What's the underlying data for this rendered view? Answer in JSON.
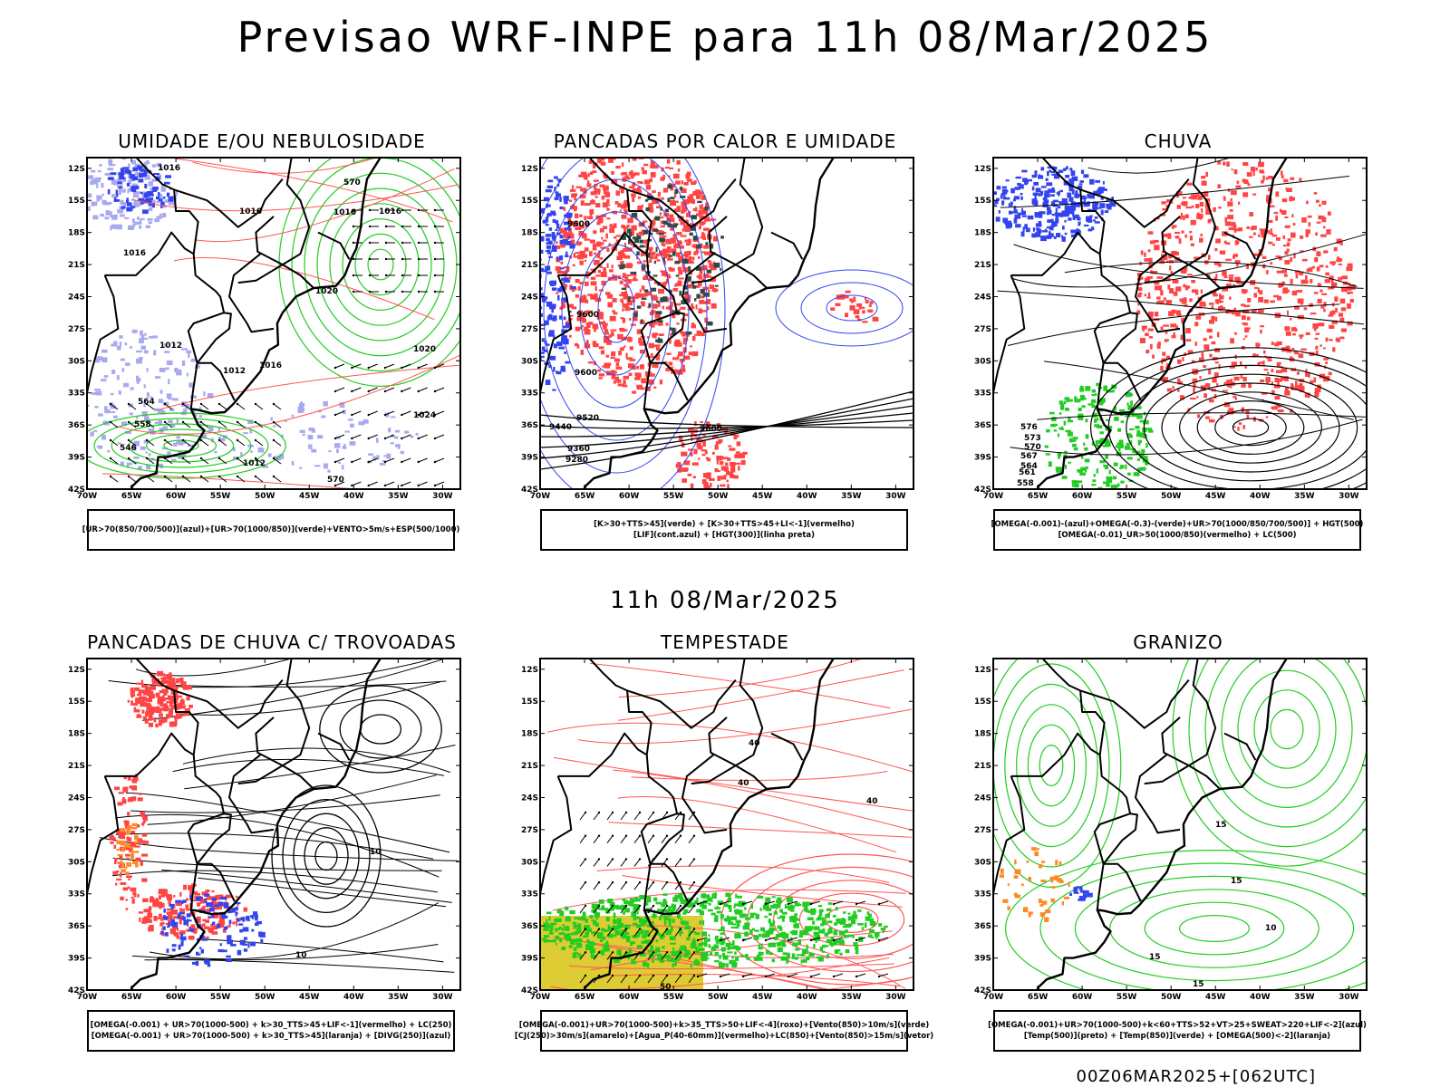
{
  "page": {
    "title": "Previsao WRF-INPE  para 11h 08/Mar/2025",
    "mid_title": "11h 08/Mar/2025",
    "footer": "00Z06MAR2025+[062UTC]"
  },
  "axes": {
    "lat_labels": [
      "12S",
      "15S",
      "18S",
      "21S",
      "24S",
      "27S",
      "30S",
      "33S",
      "36S",
      "39S",
      "42S"
    ],
    "lon_labels": [
      "70W",
      "65W",
      "60W",
      "55W",
      "50W",
      "45W",
      "40W",
      "35W",
      "30W"
    ]
  },
  "colors": {
    "blue": "#3344ee",
    "lavender": "#a9a9f0",
    "green": "#22cc22",
    "red": "#ff4444",
    "dark_teal": "#2e4a48",
    "orange": "#ff8822",
    "yellow": "#ddcc33"
  },
  "panels": [
    {
      "title": "UMIDADE E/OU NEBULOSIDADE",
      "legend": [
        "[UR>70(850/700/500)](azul)+[UR>70(1000/850)](verde)+VENTO>5m/s+ESP(500/1000)"
      ],
      "labels": [
        "1016",
        "1016",
        "1016",
        "1016",
        "1020",
        "1012",
        "1016",
        "1012",
        "1020",
        "1024",
        "1012",
        "570",
        "564",
        "558",
        "546",
        "570",
        "1016"
      ]
    },
    {
      "title": "PANCADAS POR CALOR E UMIDADE",
      "legend": [
        "[K>30+TTS>45](verde) + [K>30+TTS>45+LI<-1](vermelho)",
        "[LIF](cont.azul) + [HGT(300)](linha preta)"
      ],
      "labels": [
        "9600",
        "9600",
        "9600",
        "9520",
        "9440",
        "9360",
        "9280",
        "9600"
      ]
    },
    {
      "title": "CHUVA",
      "legend": [
        "[OMEGA(-0.001)-(azul)+OMEGA(-0.3)-(verde)+UR>70(1000/850/700/500)] + HGT(500)",
        "[OMEGA(-0.01)_UR>50(1000/850)(vermelho) + LC(500)"
      ],
      "labels": [
        "576",
        "573",
        "570",
        "567",
        "564",
        "561",
        "558"
      ]
    },
    {
      "title": "PANCADAS DE CHUVA C/ TROVOADAS",
      "legend": [
        "[OMEGA(-0.001) + UR>70(1000-500) + k>30_TTS>45+LIF<-1](vermelho) + LC(250)",
        "[OMEGA(-0.001) + UR>70(1000-500) + k>30_TTS>45](laranja) + [DIVG(250)](azul)"
      ],
      "labels": [
        "10",
        "10"
      ]
    },
    {
      "title": "TEMPESTADE",
      "legend": [
        "[OMEGA(-0.001)+UR>70(1000-500)+k>35_TTS>50+LIF<-4](roxo)+[Vento(850)>10m/s](verde)",
        "[CJ(250)>30m/s](amarelo)+[Agua_P(40-60mm)](vermelho)+LC(850)+[Vento(850)>15m/s](vetor)"
      ],
      "labels": [
        "40",
        "40",
        "40",
        "50"
      ]
    },
    {
      "title": "GRANIZO",
      "legend": [
        "[OMEGA(-0.001)+UR>70(1000-500)+k<60+TTS>52+VT>25+SWEAT>220+LIF<-2](azul)",
        "[Temp(500)](preto) + [Temp(850)](verde) + [OMEGA(500)<-2](laranja)"
      ],
      "labels": [
        "15",
        "15",
        "10",
        "15",
        "15"
      ]
    }
  ]
}
